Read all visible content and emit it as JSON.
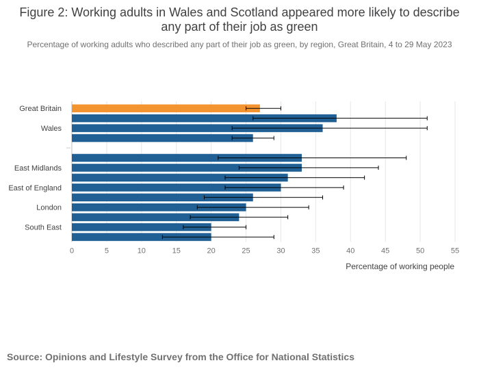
{
  "title": "Figure 2: Working adults in Wales and Scotland appeared more likely to describe any part of their job as green",
  "subtitle": "Percentage of working adults who described any part of their job as green, by region, Great Britain, 4 to 29 May 2023",
  "source": "Source: Opinions and Lifestyle Survey from the Office for National Statistics",
  "colors": {
    "highlight": "#f39431",
    "bar": "#206095",
    "grid": "#e6e6e6",
    "text": "#414042",
    "muted": "#707071"
  },
  "chart_data": {
    "type": "bar",
    "orientation": "horizontal",
    "xlabel": "Percentage of working people",
    "ylabel": "",
    "xlim": [
      0,
      55
    ],
    "xticks": [
      0,
      5,
      10,
      15,
      20,
      25,
      30,
      35,
      40,
      45,
      50,
      55
    ],
    "grid": true,
    "legend": "none",
    "rows": [
      {
        "label": "Great Britain",
        "value": 27,
        "ci": [
          25,
          30
        ],
        "highlight": true
      },
      {
        "label": "",
        "value": 38,
        "ci": [
          26,
          51
        ]
      },
      {
        "label": "Wales",
        "value": 36,
        "ci": [
          23,
          51
        ]
      },
      {
        "label": "",
        "value": 26,
        "ci": [
          23,
          29
        ]
      },
      {
        "label": "",
        "value": null,
        "ci": null
      },
      {
        "label": "",
        "value": 33,
        "ci": [
          21,
          48
        ]
      },
      {
        "label": "East Midlands",
        "value": 33,
        "ci": [
          24,
          44
        ]
      },
      {
        "label": "",
        "value": 31,
        "ci": [
          22,
          42
        ]
      },
      {
        "label": "East of England",
        "value": 30,
        "ci": [
          22,
          39
        ]
      },
      {
        "label": "",
        "value": 26,
        "ci": [
          19,
          36
        ]
      },
      {
        "label": "London",
        "value": 25,
        "ci": [
          18,
          34
        ]
      },
      {
        "label": "",
        "value": 24,
        "ci": [
          17,
          31
        ]
      },
      {
        "label": "South East",
        "value": 20,
        "ci": [
          16,
          25
        ]
      },
      {
        "label": "",
        "value": 20,
        "ci": [
          13,
          29
        ]
      }
    ]
  }
}
